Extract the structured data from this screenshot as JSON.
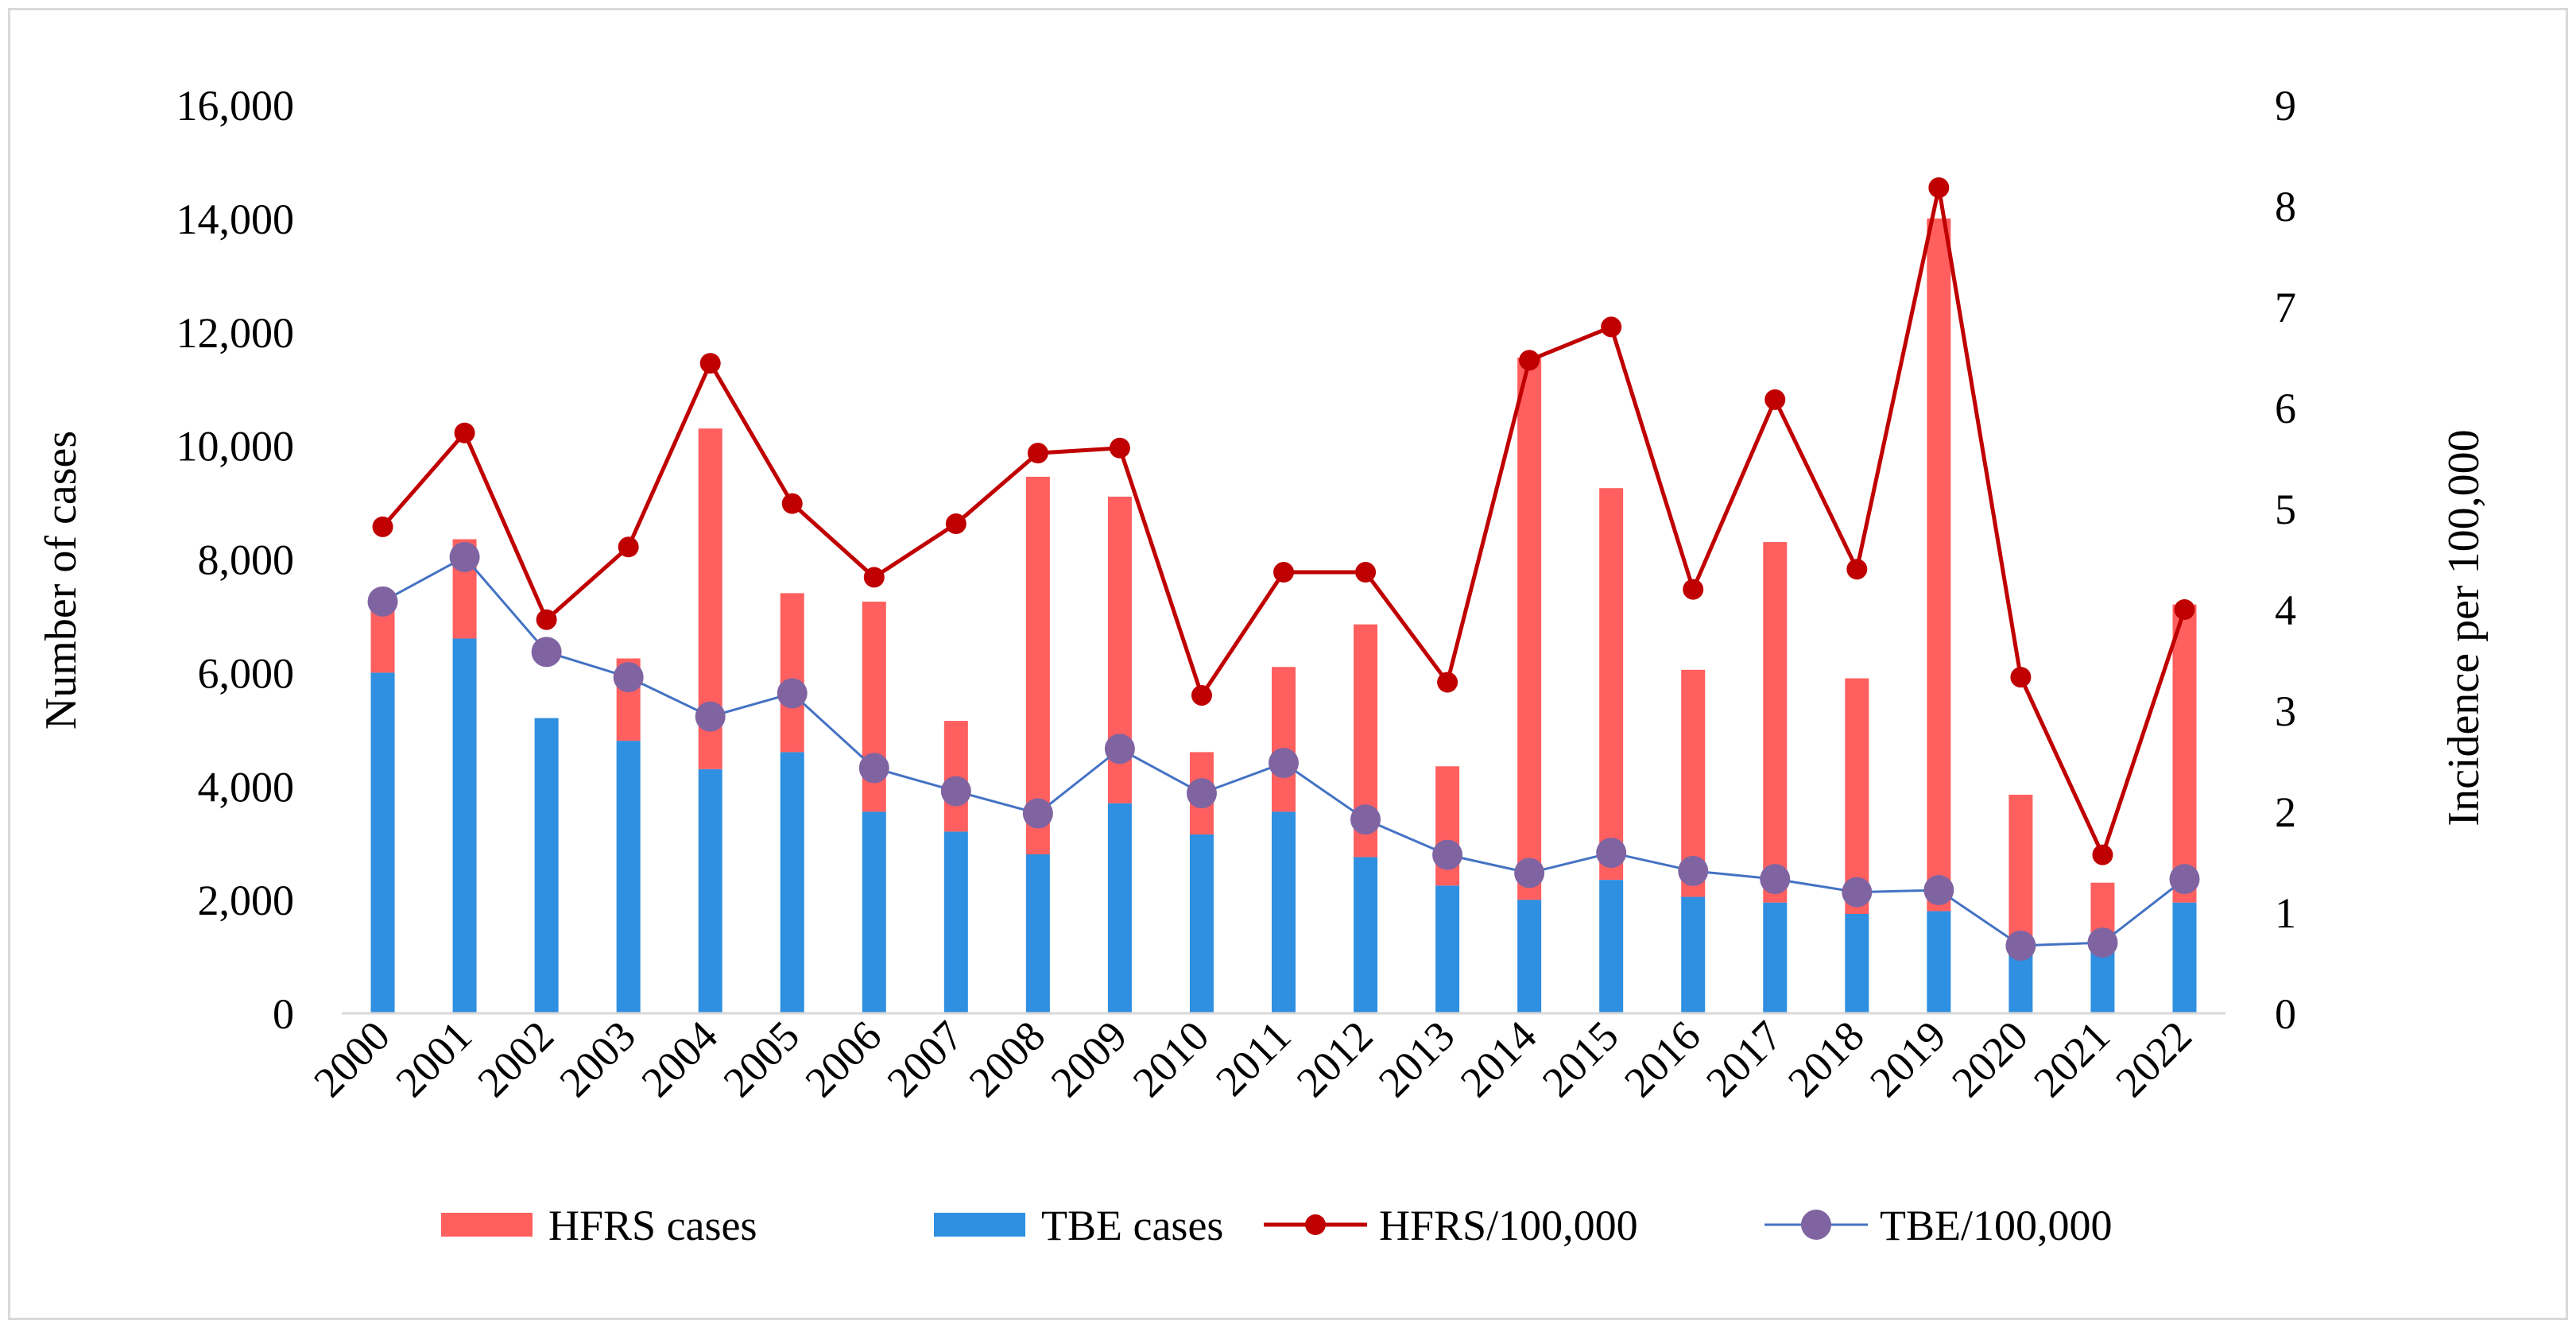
{
  "chart_data": {
    "type": "bar",
    "categories": [
      "2000",
      "2001",
      "2002",
      "2003",
      "2004",
      "2005",
      "2006",
      "2007",
      "2008",
      "2009",
      "2010",
      "2011",
      "2012",
      "2013",
      "2014",
      "2015",
      "2016",
      "2017",
      "2018",
      "2019",
      "2020",
      "2021",
      "2022"
    ],
    "series": [
      {
        "name": "HFRS cases",
        "kind": "bar",
        "axis": "left",
        "stack": "cases",
        "color": "#ff5f5f",
        "values": [
          1250,
          1750,
          0,
          1450,
          6000,
          2800,
          3700,
          1950,
          6650,
          5400,
          1450,
          2550,
          4100,
          2100,
          9550,
          6900,
          4000,
          6350,
          4150,
          12200,
          2600,
          1050,
          5250
        ]
      },
      {
        "name": "TBE cases",
        "kind": "bar",
        "axis": "left",
        "stack": "cases",
        "color": "#2f8fe0",
        "values": [
          6000,
          6600,
          5200,
          4800,
          4300,
          4600,
          3550,
          3200,
          2800,
          3700,
          3150,
          3550,
          2750,
          2250,
          2000,
          2350,
          2050,
          1950,
          1750,
          1800,
          1250,
          1250,
          1950
        ]
      },
      {
        "name": "HFRS/100,000",
        "kind": "line",
        "axis": "right",
        "color": "#c00000",
        "values": [
          4.82,
          5.75,
          3.9,
          4.62,
          6.44,
          5.05,
          4.32,
          4.85,
          5.55,
          5.6,
          3.15,
          4.37,
          4.37,
          3.28,
          6.47,
          6.8,
          4.2,
          6.08,
          4.4,
          8.18,
          3.33,
          1.57,
          4.0
        ]
      },
      {
        "name": "TBE/100,000",
        "kind": "line",
        "axis": "right",
        "color": "#4472c4",
        "marker_color": "#8064a2",
        "values": [
          4.08,
          4.52,
          3.58,
          3.33,
          2.94,
          3.17,
          2.43,
          2.2,
          1.98,
          2.62,
          2.18,
          2.48,
          1.92,
          1.57,
          1.39,
          1.59,
          1.41,
          1.33,
          1.2,
          1.22,
          0.67,
          0.7,
          1.33
        ]
      }
    ],
    "ylabel": "Number of cases",
    "y2label": "Incidence  per 100,000",
    "ylim": [
      0,
      16000
    ],
    "y2lim": [
      0,
      9
    ],
    "yticks": [
      "0",
      "2,000",
      "4,000",
      "6,000",
      "8,000",
      "10,000",
      "12,000",
      "14,000",
      "16,000"
    ],
    "y2ticks": [
      "0",
      "1",
      "2",
      "3",
      "4",
      "5",
      "6",
      "7",
      "8",
      "9"
    ],
    "grid": false,
    "legend": "bottom"
  }
}
